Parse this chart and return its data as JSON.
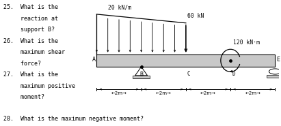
{
  "bg_color": "#ffffff",
  "text_color": "#000000",
  "beam_color": "#c8c8c8",
  "support_color": "#c8c8c8",
  "line_color": "#000000",
  "dist_load_label": "20 kN/m",
  "point_load_label": "60 kN",
  "moment_label": "120 kN·m",
  "dim_label": "2m",
  "bx0": 0.345,
  "bx1": 0.985,
  "by": 0.52,
  "bh": 0.1,
  "n_beam_segments": 8,
  "n_arrows": 9
}
